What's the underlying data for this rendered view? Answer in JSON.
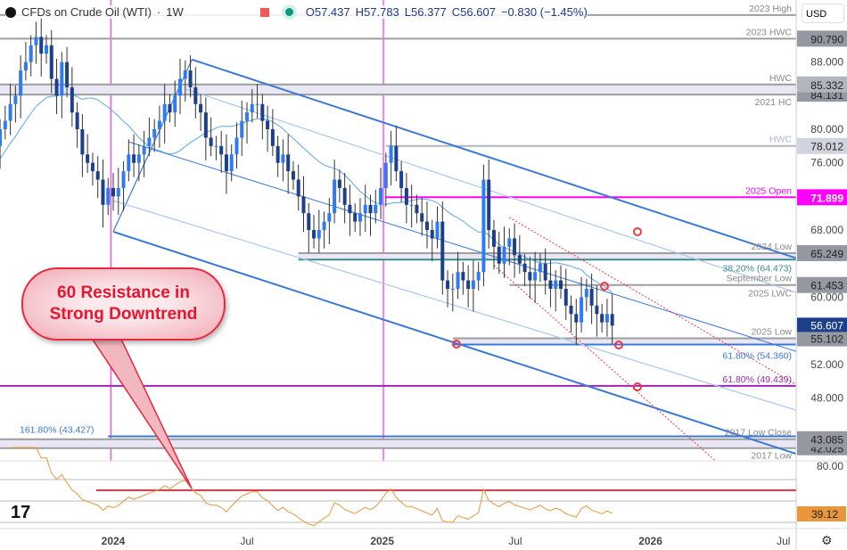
{
  "header": {
    "symbol": "CFDs on Crude Oil (WTI)",
    "interval": "1W",
    "open": "O57.437",
    "high": "H57.783",
    "low": "L56.377",
    "close": "C56.607",
    "change": "−0.830 (−1.45%)"
  },
  "currency": "USD",
  "callout": {
    "line1": "60 Resistance in",
    "line2": "Strong Downtrend"
  },
  "chart_data": {
    "type": "candlestick",
    "interval": "1W",
    "x_start": "2023-07-10",
    "x_ticks": [
      {
        "label": "Jul",
        "date": "2023-07-01"
      },
      {
        "label": "2024",
        "date": "2024-01-01"
      },
      {
        "label": "Jul",
        "date": "2024-07-01"
      },
      {
        "label": "2025",
        "date": "2025-01-01"
      },
      {
        "label": "Jul",
        "date": "2025-07-01"
      },
      {
        "label": "2026",
        "date": "2026-01-01"
      },
      {
        "label": "Jul",
        "date": "2026-07-01"
      }
    ],
    "y_ticks": [
      "88.000",
      "80.000",
      "76.000",
      "68.000",
      "60.000",
      "52.000",
      "48.000"
    ],
    "ylim": [
      40.5,
      94
    ],
    "closes": [
      73,
      75,
      78,
      80,
      81,
      83,
      84,
      87,
      88,
      90,
      91,
      89,
      90,
      86,
      84,
      88,
      85,
      82,
      80,
      77,
      76,
      75,
      74,
      71,
      73,
      72,
      73,
      75,
      77,
      76,
      77,
      78,
      79,
      80,
      81,
      83,
      82,
      84,
      86,
      87,
      85,
      83,
      82,
      79,
      78,
      78,
      77,
      75,
      77,
      79,
      81,
      82,
      83,
      83,
      81,
      80,
      78,
      76,
      77,
      75,
      74,
      72,
      70,
      68,
      67,
      68,
      69,
      70,
      74,
      73,
      71,
      70,
      69,
      70,
      71,
      70,
      71,
      73,
      76,
      78,
      75,
      73,
      71,
      71,
      70,
      69,
      68,
      67,
      69,
      62,
      61,
      61,
      63,
      62,
      61,
      62,
      63,
      74,
      68,
      66,
      64,
      66,
      67,
      65,
      64,
      63,
      62,
      63,
      64,
      62,
      61,
      62,
      61,
      59,
      58,
      57,
      60,
      61,
      59,
      58,
      57,
      58,
      56.607
    ],
    "levels": [
      {
        "price": 93.6,
        "label": "2023 High",
        "color": "#9e9e9e",
        "from": "2023-07-10"
      },
      {
        "price": 90.79,
        "label": "2023 HWC",
        "color": "#9e9e9e",
        "from": "2023-07-10",
        "tag": "90.790",
        "tagbg": "#9598a1"
      },
      {
        "price": 85.332,
        "price2": 84.131,
        "label": "HWC",
        "label2": "2021 HC",
        "color": "#9e9e9e",
        "from": "2023-07-10",
        "tag": "85.332",
        "tagbg": "#b2b5be",
        "tag2": "84.131"
      },
      {
        "price": 78.012,
        "label": "HWC",
        "color": "#b2b5be",
        "from": "2025-01-06",
        "tag": "78.012",
        "tagbg": "#d1d4dc"
      },
      {
        "price": 71.899,
        "label": "2025 Open",
        "color": "#ff00ff",
        "from": "2025-01-06",
        "tag": "71.899",
        "tagbg": "#ff00ff",
        "tagfg": "#ffffff"
      },
      {
        "price": 65.249,
        "price2": 64.473,
        "label": "2024 Low",
        "label2": "38.20% (64.473)",
        "color": "#9e9e9e",
        "color2": "#3d8a8f",
        "from": "2024-09-09",
        "tag": "65.249",
        "tagbg": "#9598a1"
      },
      {
        "price": 61.453,
        "label": "September Low",
        "label2": "2025 LWC",
        "color": "#9e9e9e",
        "from": "2025-06-23",
        "tag": "61.453",
        "tagbg": "#9598a1"
      },
      {
        "price": 55.102,
        "price2": 54.36,
        "label": "2025 Low",
        "label2": "61.80% (54.360)",
        "color": "#9e9e9e",
        "color2": "#3a78d6",
        "from": "2025-04-07",
        "tag": "55.102",
        "tagbg": "#9598a1"
      },
      {
        "price": 49.439,
        "label": "61.80% (49.439)",
        "color": "#9c27b0",
        "from": "2023-07-10"
      },
      {
        "price": 43.427,
        "label": "161.80% (43.427)",
        "color": "#3a78d6",
        "from": "2023-12-25"
      },
      {
        "price": 43.085,
        "price2": 42.025,
        "label": "2017 Low Close",
        "label2": "2017 Low",
        "color": "#9e9e9e",
        "from": "2023-07-10",
        "tag": "43.085",
        "tagbg": "#9598a1",
        "tag2": "42.025"
      }
    ],
    "last_price_tag": "56.607",
    "rsi": {
      "level_label": "80.00",
      "resistance": 60,
      "last": "39.12"
    },
    "colors": {
      "up": "#2f7bf5",
      "down": "#1e3f8a",
      "ma": "#5aa7e8",
      "rsi": "#e8973a",
      "rsi_res": "#f23645"
    }
  }
}
